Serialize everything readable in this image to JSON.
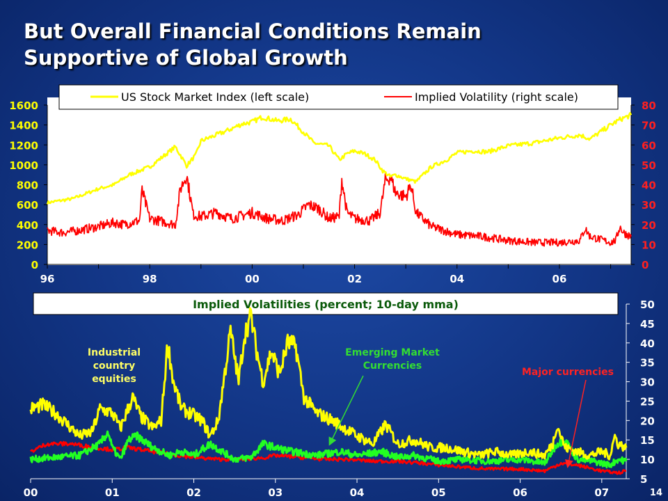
{
  "slide": {
    "title_line1": "But Overall Financial Conditions Remain",
    "title_line2": "Supportive of Global Growth",
    "page_number": "14"
  },
  "colors": {
    "stock": "#ffff00",
    "vol": "#ff0000",
    "em": "#22ff22",
    "legend_text_top": "#000000",
    "label_yellow": "#ffff66",
    "label_green": "#33dd33",
    "label_red": "#ff2222"
  },
  "chart_data": [
    {
      "type": "line",
      "title": "",
      "legend": [
        {
          "name": "US Stock Market Index (left scale)",
          "color": "#ffff00"
        },
        {
          "name": "Implied Volatility (right scale)",
          "color": "#ff0000"
        }
      ],
      "legend_placement": "top",
      "x_ticks": [
        "96",
        "98",
        "00",
        "02",
        "04",
        "06"
      ],
      "x_tick_years": [
        1996,
        1998,
        2000,
        2002,
        2004,
        2006
      ],
      "xlim": [
        1996,
        2007.4
      ],
      "y_left_ticks": [
        "0",
        "200",
        "400",
        "600",
        "800",
        "1000",
        "1200",
        "1400",
        "1600"
      ],
      "ylim_left": [
        0,
        1600
      ],
      "y_right_ticks": [
        "0",
        "10",
        "20",
        "30",
        "40",
        "50",
        "60",
        "70",
        "80"
      ],
      "ylim_right": [
        0,
        80
      ],
      "grid": false,
      "series": [
        {
          "name": "US Stock Market Index (left scale)",
          "axis": "left",
          "x": [
            1996.0,
            1996.5,
            1997.0,
            1997.3,
            1997.6,
            1997.85,
            1998.0,
            1998.3,
            1998.5,
            1998.62,
            1998.72,
            1998.9,
            1999.0,
            1999.3,
            1999.5,
            1999.8,
            2000.0,
            2000.2,
            2000.5,
            2000.75,
            2001.0,
            2001.2,
            2001.5,
            2001.7,
            2001.85,
            2002.0,
            2002.2,
            2002.4,
            2002.55,
            2002.7,
            2002.8,
            2003.0,
            2003.2,
            2003.5,
            2003.8,
            2004.0,
            2004.3,
            2004.6,
            2005.0,
            2005.5,
            2006.0,
            2006.4,
            2006.6,
            2007.0,
            2007.2,
            2007.4
          ],
          "y": [
            620,
            660,
            760,
            800,
            900,
            950,
            980,
            1100,
            1180,
            1080,
            990,
            1100,
            1240,
            1300,
            1340,
            1410,
            1430,
            1480,
            1440,
            1460,
            1330,
            1220,
            1190,
            1050,
            1110,
            1140,
            1110,
            1050,
            940,
            880,
            900,
            860,
            830,
            980,
            1050,
            1120,
            1140,
            1130,
            1190,
            1220,
            1270,
            1300,
            1260,
            1400,
            1460,
            1500
          ]
        },
        {
          "name": "Implied Volatility (right scale)",
          "axis": "right",
          "x": [
            1996.0,
            1996.3,
            1996.6,
            1997.0,
            1997.3,
            1997.5,
            1997.8,
            1997.85,
            1998.0,
            1998.5,
            1998.6,
            1998.72,
            1998.85,
            1999.0,
            1999.3,
            1999.6,
            2000.0,
            2000.3,
            2000.6,
            2000.9,
            2001.1,
            2001.3,
            2001.5,
            2001.7,
            2001.75,
            2001.85,
            2002.0,
            2002.3,
            2002.5,
            2002.6,
            2002.7,
            2002.8,
            2003.0,
            2003.1,
            2003.2,
            2003.5,
            2004.0,
            2004.5,
            2005.0,
            2005.5,
            2006.0,
            2006.4,
            2006.5,
            2006.6,
            2007.0,
            2007.1,
            2007.18,
            2007.25,
            2007.4
          ],
          "y": [
            17,
            16,
            17,
            19,
            21,
            20,
            22,
            37,
            23,
            20,
            38,
            45,
            25,
            24,
            26,
            23,
            26,
            23,
            22,
            25,
            30,
            28,
            23,
            24,
            43,
            26,
            23,
            22,
            26,
            42,
            44,
            36,
            34,
            40,
            26,
            19,
            15,
            14,
            12,
            11,
            11,
            12,
            18,
            14,
            11,
            12,
            19,
            16,
            14
          ]
        }
      ]
    },
    {
      "type": "line",
      "title": "Implied Volatilities (percent; 10-day mma)",
      "x_ticks": [
        "00",
        "01",
        "02",
        "03",
        "04",
        "05",
        "06",
        "07"
      ],
      "x_tick_years": [
        2000,
        2001,
        2002,
        2003,
        2004,
        2005,
        2006,
        2007
      ],
      "xlim": [
        2000,
        2007.3
      ],
      "y_right_ticks": [
        "5",
        "10",
        "15",
        "20",
        "25",
        "30",
        "35",
        "40",
        "45",
        "50"
      ],
      "ylim": [
        5,
        50
      ],
      "grid": false,
      "annotations": [
        {
          "text_lines": [
            "Industrial",
            "country",
            "equities"
          ],
          "color": "#ffff66",
          "x_year": 2001.05,
          "y_value": 41.5
        },
        {
          "text_lines": [
            "Emerging Market",
            "Currencies"
          ],
          "color": "#33dd33",
          "x_year": 2004.45,
          "y_value": 41.5
        },
        {
          "text_lines": [
            "Major currencies"
          ],
          "color": "#ff2222",
          "x_year": 6.95,
          "y_value": 34.3
        }
      ],
      "series": [
        {
          "name": "Industrial country equities",
          "x": [
            2000.0,
            2000.15,
            2000.3,
            2000.45,
            2000.6,
            2000.75,
            2000.85,
            2001.0,
            2001.1,
            2001.25,
            2001.35,
            2001.5,
            2001.6,
            2001.68,
            2001.75,
            2001.85,
            2001.95,
            2002.1,
            2002.2,
            2002.3,
            2002.45,
            2002.55,
            2002.62,
            2002.7,
            2002.77,
            2002.85,
            2002.95,
            2003.05,
            2003.15,
            2003.25,
            2003.35,
            2003.5,
            2003.7,
            2003.85,
            2004.0,
            2004.2,
            2004.35,
            2004.5,
            2004.7,
            2004.9,
            2005.1,
            2005.3,
            2005.5,
            2005.7,
            2005.9,
            2006.1,
            2006.3,
            2006.4,
            2006.45,
            2006.55,
            2006.7,
            2006.85,
            2007.0,
            2007.1,
            2007.16,
            2007.2,
            2007.3
          ],
          "y": [
            23,
            24,
            22,
            19,
            16,
            17,
            23,
            22,
            18,
            26,
            21,
            18,
            20,
            40,
            30,
            23,
            22,
            20,
            16,
            20,
            43,
            30,
            42,
            47,
            38,
            30,
            38,
            32,
            40,
            39,
            26,
            22,
            20,
            18,
            16,
            14,
            19,
            14,
            15,
            13,
            13,
            12,
            11,
            12,
            11,
            12,
            11,
            14,
            19,
            13,
            12,
            11,
            12,
            11,
            16,
            14,
            13
          ]
        },
        {
          "name": "Emerging Market Currencies",
          "x": [
            2000.0,
            2000.3,
            2000.6,
            2000.85,
            2000.95,
            2001.0,
            2001.1,
            2001.2,
            2001.3,
            2001.5,
            2001.7,
            2001.85,
            2002.0,
            2002.2,
            2002.35,
            2002.5,
            2002.7,
            2002.85,
            2003.0,
            2003.2,
            2003.5,
            2003.8,
            2004.0,
            2004.3,
            2004.5,
            2004.7,
            2005.0,
            2005.3,
            2005.6,
            2006.0,
            2006.3,
            2006.45,
            2006.55,
            2006.7,
            2006.9,
            2007.1,
            2007.2,
            2007.3
          ],
          "y": [
            10,
            10.5,
            11,
            14,
            17,
            13,
            10,
            15,
            16,
            13,
            11,
            12,
            11,
            14,
            12,
            10,
            10.5,
            14,
            13,
            12,
            11,
            12,
            11,
            12,
            10.5,
            11,
            9.5,
            10,
            9.5,
            10,
            9,
            14,
            15,
            10,
            9.5,
            8.5,
            10,
            9.5
          ]
        },
        {
          "name": "Major currencies",
          "x": [
            2000.0,
            2000.2,
            2000.5,
            2000.8,
            2001.0,
            2001.2,
            2001.5,
            2001.8,
            2002.0,
            2002.3,
            2002.6,
            2002.9,
            2003.0,
            2003.3,
            2003.6,
            2003.9,
            2004.2,
            2004.5,
            2004.8,
            2005.0,
            2005.3,
            2005.6,
            2006.0,
            2006.3,
            2006.5,
            2006.7,
            2006.9,
            2007.0,
            2007.2,
            2007.3
          ],
          "y": [
            12,
            14,
            14,
            13,
            12.5,
            13,
            12,
            11,
            10.5,
            10,
            10,
            10.5,
            11,
            10.5,
            10,
            10,
            9.5,
            9.5,
            9,
            8.5,
            8,
            7.5,
            7.5,
            7,
            9,
            8.5,
            7.5,
            7,
            6.5,
            7
          ]
        }
      ]
    }
  ]
}
